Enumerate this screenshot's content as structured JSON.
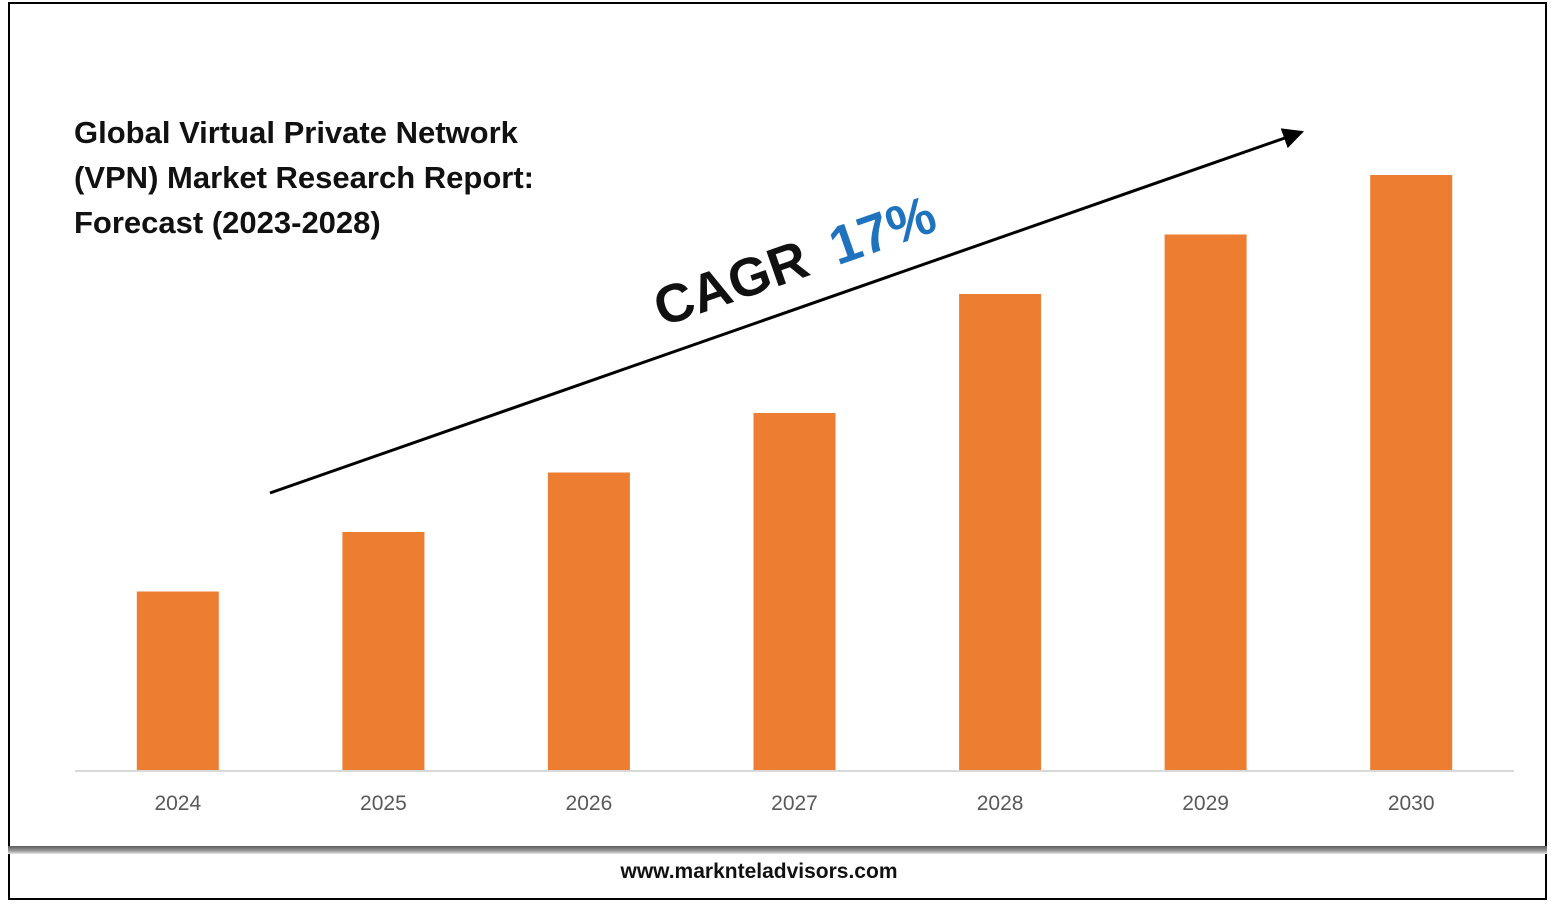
{
  "title_lines": [
    "Global Virtual Private Network",
    "(VPN) Market Research Report:",
    "Forecast (2023-2028)"
  ],
  "annotation": {
    "label": "CAGR",
    "value": "17%",
    "label_color": "#111111",
    "value_color": "#1F73BE"
  },
  "footer": {
    "url": "www.marknteladvisors.com"
  },
  "colors": {
    "bar": "#ED7D31",
    "axis": "#D9D9D9",
    "tick_text": "#595959"
  },
  "chart_data": {
    "type": "bar",
    "title": "Global Virtual Private Network (VPN) Market Research Report: Forecast (2023-2028)",
    "categories": [
      "2024",
      "2025",
      "2026",
      "2027",
      "2028",
      "2029",
      "2030"
    ],
    "values": [
      30,
      40,
      50,
      60,
      80,
      90,
      100
    ],
    "xlabel": "",
    "ylabel": "",
    "ylim": [
      0,
      100
    ],
    "grid": false,
    "legend": "none"
  }
}
